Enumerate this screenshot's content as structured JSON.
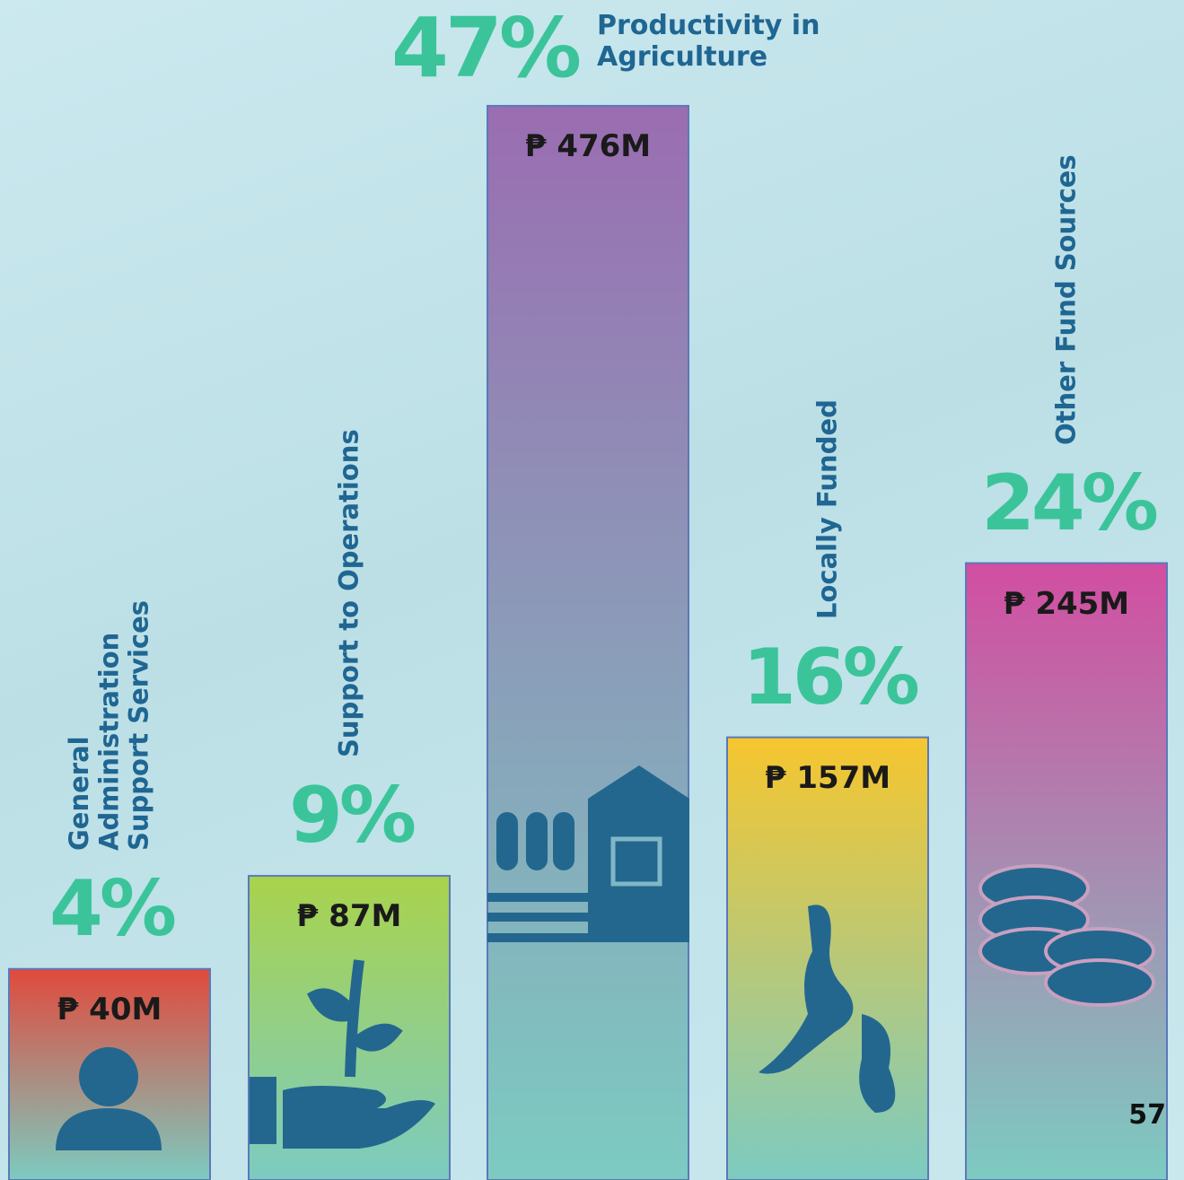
{
  "chart_data": {
    "type": "bar",
    "categories": [
      "General Administration Support Services",
      "Support to Operations",
      "Productivity in Agriculture",
      "Locally Funded",
      "Other Fund Sources"
    ],
    "values": [
      40,
      87,
      476,
      157,
      245
    ],
    "value_labels": [
      "₱ 40M",
      "₱ 87M",
      "₱ 476M",
      "₱ 157M",
      "₱ 245M"
    ],
    "shares": [
      4,
      9,
      47,
      16,
      24
    ],
    "share_labels": [
      "4%",
      "9%",
      "47%",
      "16%",
      "24%"
    ],
    "colors": [
      "#e04a3c",
      "#a9d34c",
      "#9a6db1",
      "#f6c62e",
      "#d24ea1"
    ]
  },
  "page_number": "57"
}
